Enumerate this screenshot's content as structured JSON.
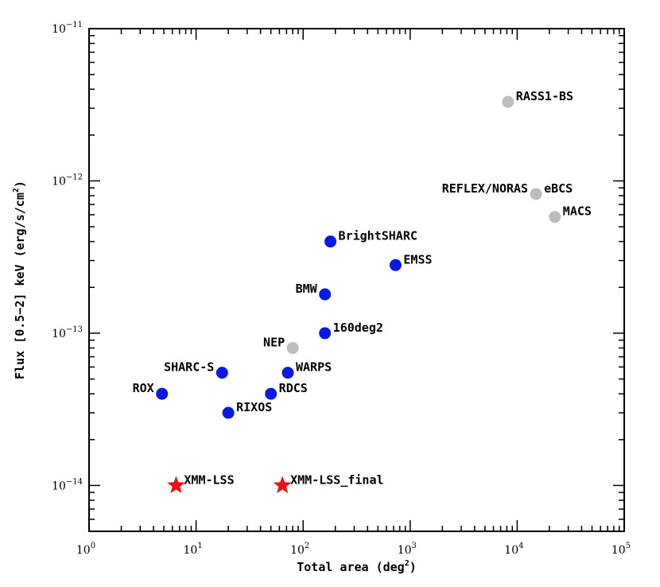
{
  "chart_data": {
    "type": "scatter",
    "title": "",
    "xlabel": {
      "main": "Total area (deg",
      "sup": "2",
      "tail": ")"
    },
    "ylabel": {
      "main": "Flux [0.5−2] keV (erg/s/cm",
      "sup": "2",
      "tail": ")"
    },
    "xscale": "log",
    "yscale": "log",
    "xlim": [
      1,
      100000
    ],
    "ylim": [
      5e-15,
      1e-11
    ],
    "x_ticks": [
      {
        "value": 1,
        "base": "10",
        "exp": "0"
      },
      {
        "value": 10,
        "base": "10",
        "exp": "1"
      },
      {
        "value": 100,
        "base": "10",
        "exp": "2"
      },
      {
        "value": 1000,
        "base": "10",
        "exp": "3"
      },
      {
        "value": 10000,
        "base": "10",
        "exp": "4"
      },
      {
        "value": 100000,
        "base": "10",
        "exp": "5"
      }
    ],
    "y_ticks": [
      {
        "value": 1e-14,
        "base": "10",
        "exp": "−14"
      },
      {
        "value": 1e-13,
        "base": "10",
        "exp": "−13"
      },
      {
        "value": 1e-12,
        "base": "10",
        "exp": "−12"
      },
      {
        "value": 1e-11,
        "base": "10",
        "exp": "−11"
      }
    ],
    "colors": {
      "blue": "#0a19e6",
      "grey": "#bdbdbd",
      "red": "#ee1111"
    },
    "points": [
      {
        "label": "RASS1-BS",
        "x": 8200,
        "y": 3.3e-12,
        "marker": "circle",
        "color": "grey",
        "anchor": "right"
      },
      {
        "label": "eBCS",
        "x": 15000,
        "y": 8.2e-13,
        "marker": "circle",
        "color": "grey",
        "anchor": "right"
      },
      {
        "label": "REFLEX/NORAS",
        "x": 15000,
        "y": 8.2e-13,
        "marker": "circle",
        "color": "grey",
        "anchor": "left"
      },
      {
        "label": "MACS",
        "x": 22500,
        "y": 5.8e-13,
        "marker": "circle",
        "color": "grey",
        "anchor": "right"
      },
      {
        "label": "NEP",
        "x": 80,
        "y": 8e-14,
        "marker": "circle",
        "color": "grey",
        "anchor": "left"
      },
      {
        "label": "BrightSHARC",
        "x": 180,
        "y": 4e-13,
        "marker": "circle",
        "color": "blue",
        "anchor": "right"
      },
      {
        "label": "EMSS",
        "x": 730,
        "y": 2.8e-13,
        "marker": "circle",
        "color": "blue",
        "anchor": "right"
      },
      {
        "label": "BMW",
        "x": 160,
        "y": 1.8e-13,
        "marker": "circle",
        "color": "blue",
        "anchor": "left"
      },
      {
        "label": "160deg2",
        "x": 160,
        "y": 1e-13,
        "marker": "circle",
        "color": "blue",
        "anchor": "right"
      },
      {
        "label": "SHARC-S",
        "x": 17.5,
        "y": 5.5e-14,
        "marker": "circle",
        "color": "blue",
        "anchor": "left"
      },
      {
        "label": "WARPS",
        "x": 72,
        "y": 5.5e-14,
        "marker": "circle",
        "color": "blue",
        "anchor": "right"
      },
      {
        "label": "ROX",
        "x": 4.8,
        "y": 4e-14,
        "marker": "circle",
        "color": "blue",
        "anchor": "left"
      },
      {
        "label": "RDCS",
        "x": 50,
        "y": 4e-14,
        "marker": "circle",
        "color": "blue",
        "anchor": "right"
      },
      {
        "label": "RIXOS",
        "x": 20,
        "y": 3e-14,
        "marker": "circle",
        "color": "blue",
        "anchor": "right"
      },
      {
        "label": "XMM-LSS",
        "x": 6.5,
        "y": 1e-14,
        "marker": "star",
        "color": "red",
        "anchor": "right"
      },
      {
        "label": "XMM-LSS_final",
        "x": 64,
        "y": 1e-14,
        "marker": "star",
        "color": "red",
        "anchor": "right"
      }
    ],
    "grid": false,
    "legend": "none"
  }
}
